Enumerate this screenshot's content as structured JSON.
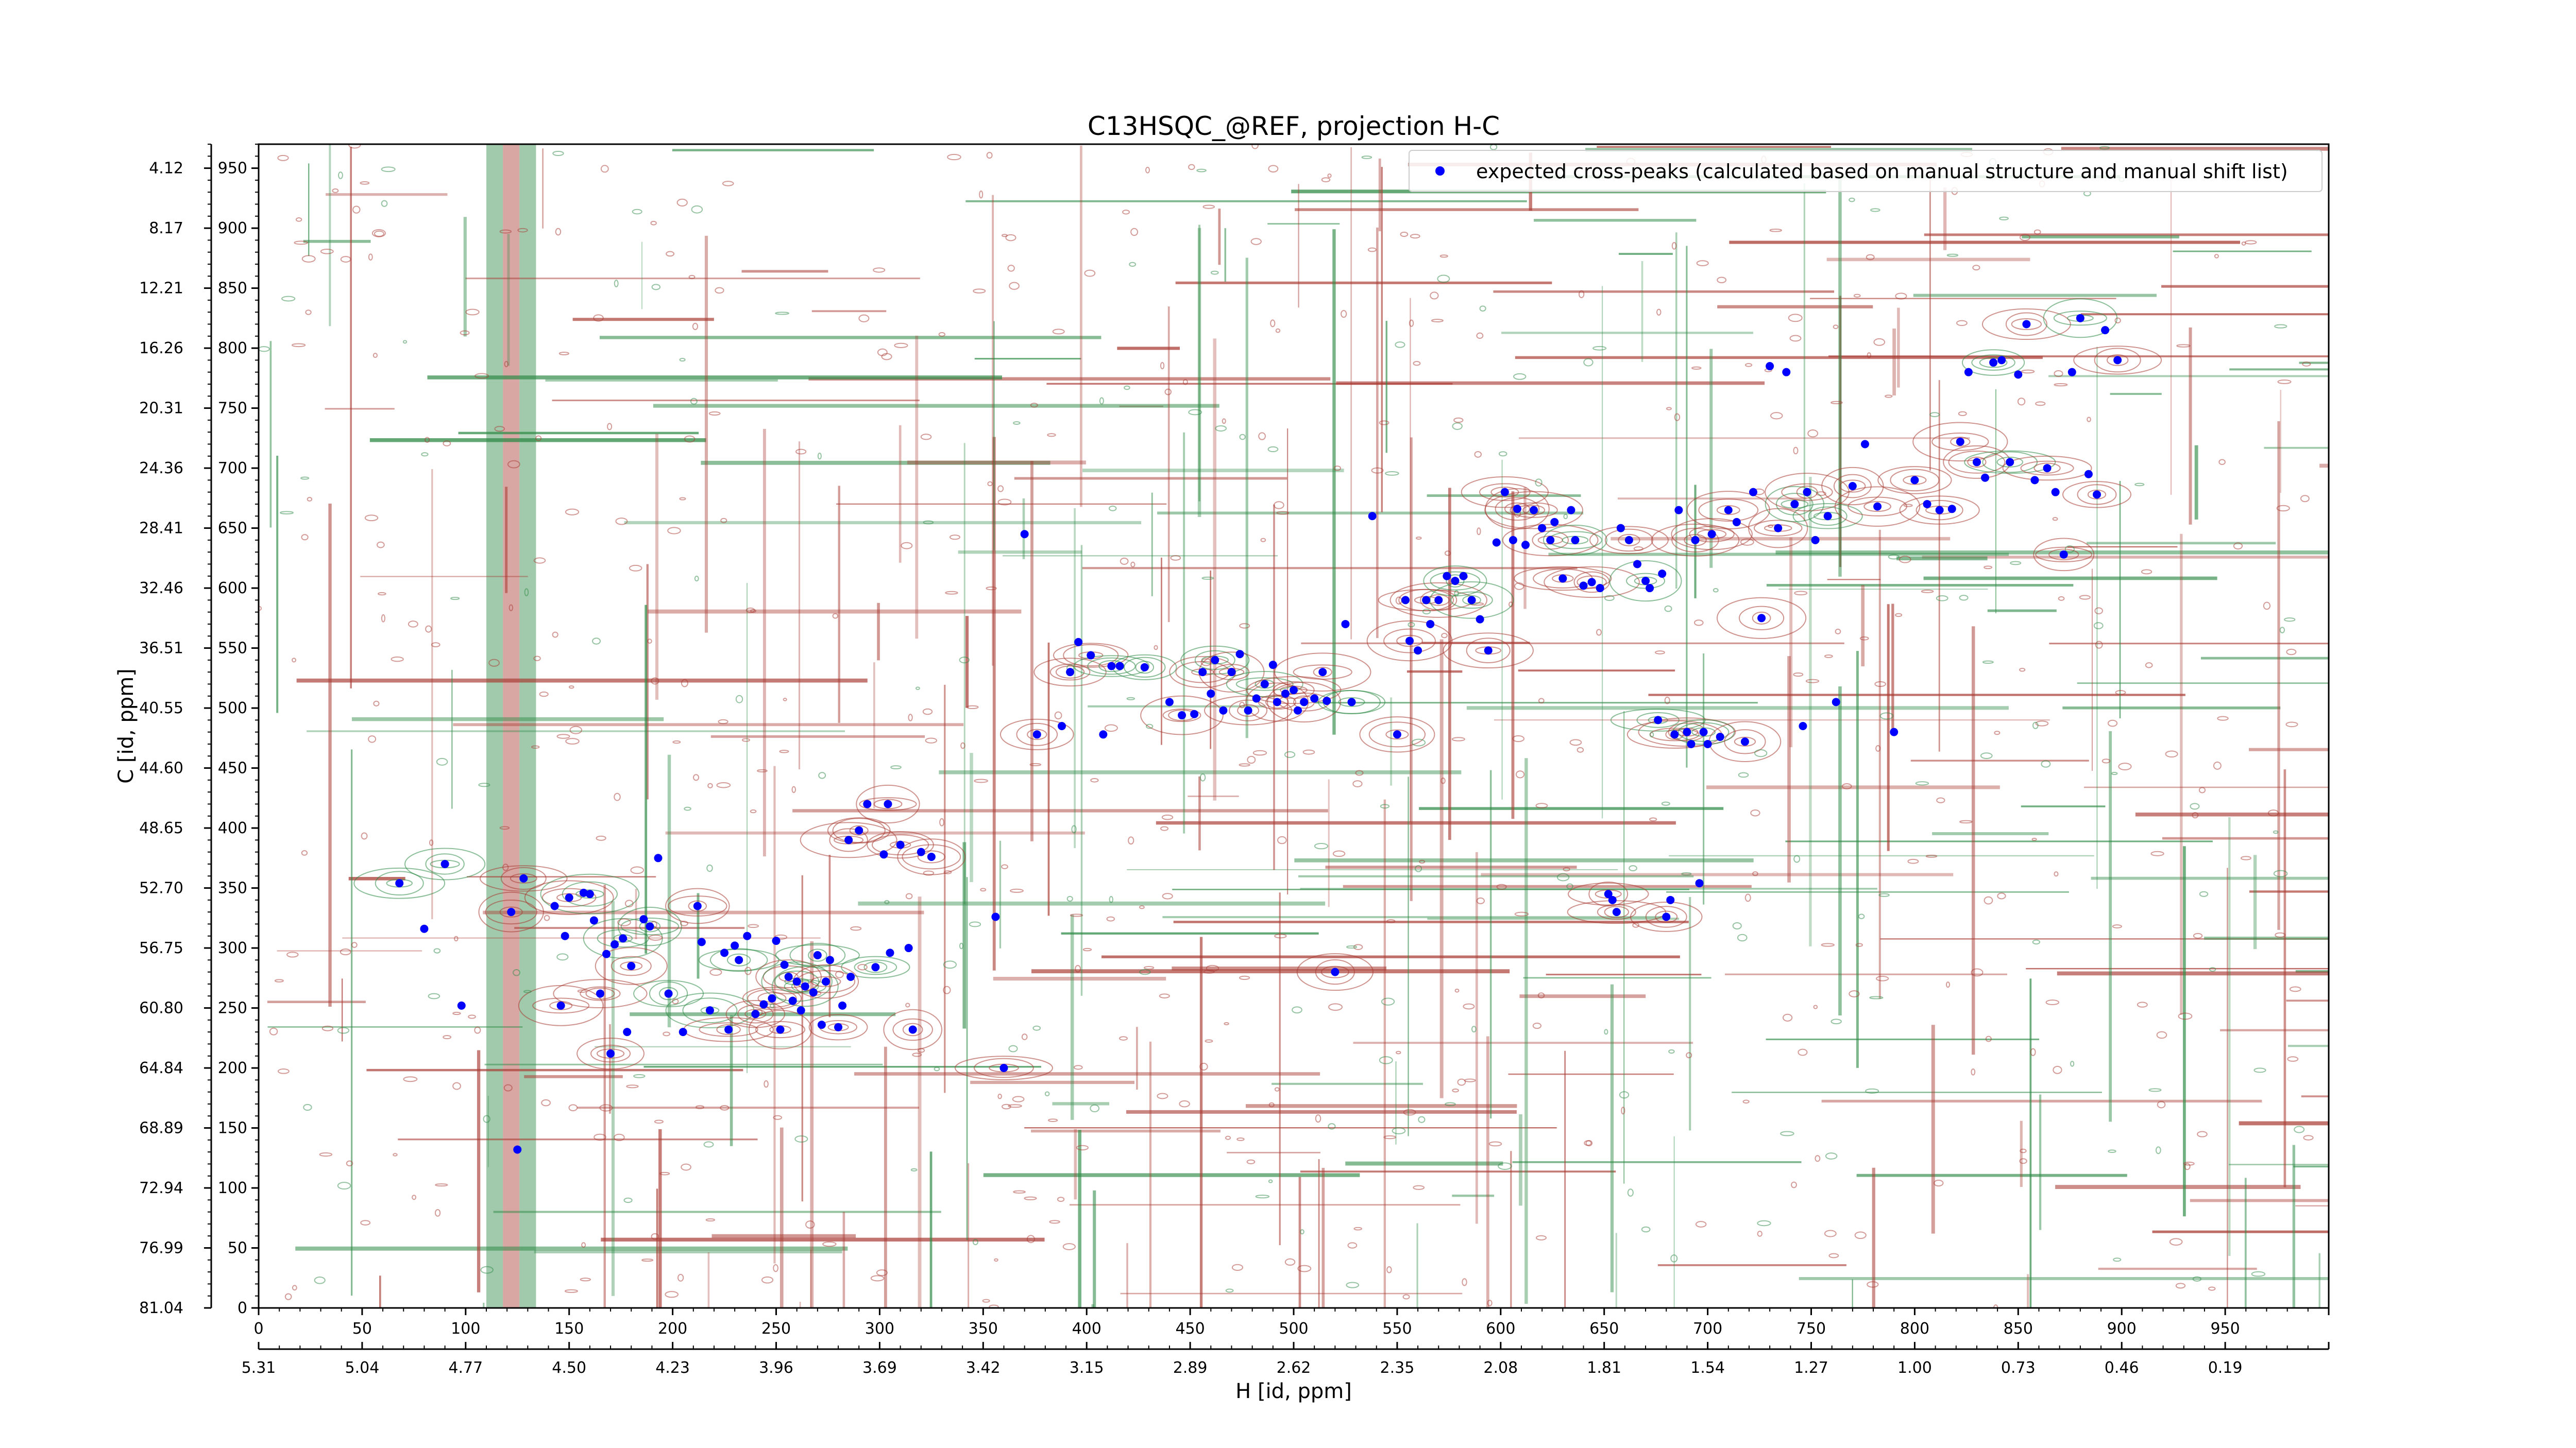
{
  "chart_data": {
    "type": "scatter",
    "title": "C13HSQC_@REF, projection H-C",
    "xlabel": "H [id, ppm]",
    "ylabel": "C [id, ppm]",
    "xlim": [
      0,
      1000
    ],
    "ylim": [
      0,
      970
    ],
    "x_ticks": [
      0,
      50,
      100,
      150,
      200,
      250,
      300,
      350,
      400,
      450,
      500,
      550,
      600,
      650,
      700,
      750,
      800,
      850,
      900,
      950
    ],
    "y_ticks": [
      0,
      50,
      100,
      150,
      200,
      250,
      300,
      350,
      400,
      450,
      500,
      550,
      600,
      650,
      700,
      750,
      800,
      850,
      900,
      950
    ],
    "ppm_x_ticks": [
      "5.31",
      "5.04",
      "4.77",
      "4.50",
      "4.23",
      "3.96",
      "3.69",
      "3.42",
      "3.15",
      "2.89",
      "2.62",
      "2.35",
      "2.08",
      "1.81",
      "1.54",
      "1.27",
      "1.00",
      "0.73",
      "0.46",
      "0.19"
    ],
    "ppm_y_ticks": [
      "81.04",
      "76.99",
      "72.94",
      "68.89",
      "64.84",
      "60.80",
      "56.75",
      "52.70",
      "48.65",
      "44.60",
      "40.55",
      "36.51",
      "32.46",
      "28.41",
      "24.36",
      "20.31",
      "16.26",
      "12.21",
      "8.17",
      "4.12"
    ],
    "legend": {
      "position": "top-right",
      "label": "expected cross-peaks (calculated based on manual structure and manual shift list)"
    },
    "grid": false,
    "series": [
      {
        "name": "expected cross-peaks (calculated based on manual structure and manual shift list)",
        "color": "#0000ff",
        "points": [
          [
            68,
            354
          ],
          [
            80,
            316
          ],
          [
            90,
            370
          ],
          [
            98,
            252
          ],
          [
            122,
            330
          ],
          [
            125,
            132
          ],
          [
            128,
            358
          ],
          [
            143,
            335
          ],
          [
            146,
            252
          ],
          [
            148,
            310
          ],
          [
            150,
            342
          ],
          [
            157,
            346
          ],
          [
            160,
            345
          ],
          [
            162,
            323
          ],
          [
            165,
            262
          ],
          [
            168,
            295
          ],
          [
            170,
            212
          ],
          [
            172,
            303
          ],
          [
            176,
            308
          ],
          [
            178,
            230
          ],
          [
            180,
            285
          ],
          [
            186,
            324
          ],
          [
            189,
            318
          ],
          [
            193,
            375
          ],
          [
            198,
            262
          ],
          [
            205,
            230
          ],
          [
            212,
            335
          ],
          [
            214,
            305
          ],
          [
            218,
            248
          ],
          [
            225,
            296
          ],
          [
            227,
            232
          ],
          [
            230,
            302
          ],
          [
            232,
            290
          ],
          [
            236,
            310
          ],
          [
            240,
            245
          ],
          [
            244,
            253
          ],
          [
            248,
            258
          ],
          [
            250,
            306
          ],
          [
            252,
            232
          ],
          [
            254,
            286
          ],
          [
            256,
            276
          ],
          [
            258,
            256
          ],
          [
            260,
            272
          ],
          [
            262,
            248
          ],
          [
            264,
            268
          ],
          [
            268,
            263
          ],
          [
            270,
            294
          ],
          [
            272,
            236
          ],
          [
            274,
            272
          ],
          [
            276,
            290
          ],
          [
            280,
            234
          ],
          [
            282,
            252
          ],
          [
            285,
            390
          ],
          [
            286,
            276
          ],
          [
            290,
            398
          ],
          [
            294,
            420
          ],
          [
            298,
            284
          ],
          [
            302,
            378
          ],
          [
            304,
            420
          ],
          [
            305,
            296
          ],
          [
            310,
            386
          ],
          [
            314,
            300
          ],
          [
            316,
            232
          ],
          [
            320,
            380
          ],
          [
            325,
            376
          ],
          [
            356,
            326
          ],
          [
            360,
            200
          ],
          [
            370,
            645
          ],
          [
            376,
            478
          ],
          [
            388,
            485
          ],
          [
            392,
            530
          ],
          [
            396,
            555
          ],
          [
            402,
            544
          ],
          [
            408,
            478
          ],
          [
            412,
            535
          ],
          [
            416,
            535
          ],
          [
            428,
            534
          ],
          [
            440,
            505
          ],
          [
            446,
            494
          ],
          [
            452,
            495
          ],
          [
            456,
            530
          ],
          [
            460,
            512
          ],
          [
            462,
            540
          ],
          [
            466,
            498
          ],
          [
            470,
            530
          ],
          [
            474,
            545
          ],
          [
            478,
            498
          ],
          [
            482,
            508
          ],
          [
            486,
            520
          ],
          [
            490,
            536
          ],
          [
            492,
            505
          ],
          [
            496,
            512
          ],
          [
            500,
            515
          ],
          [
            502,
            498
          ],
          [
            505,
            505
          ],
          [
            510,
            508
          ],
          [
            514,
            530
          ],
          [
            516,
            506
          ],
          [
            520,
            280
          ],
          [
            525,
            570
          ],
          [
            528,
            505
          ],
          [
            538,
            660
          ],
          [
            550,
            478
          ],
          [
            554,
            590
          ],
          [
            556,
            556
          ],
          [
            560,
            548
          ],
          [
            564,
            590
          ],
          [
            566,
            570
          ],
          [
            570,
            590
          ],
          [
            574,
            610
          ],
          [
            578,
            606
          ],
          [
            582,
            610
          ],
          [
            586,
            590
          ],
          [
            590,
            574
          ],
          [
            594,
            548
          ],
          [
            598,
            638
          ],
          [
            602,
            680
          ],
          [
            606,
            640
          ],
          [
            608,
            666
          ],
          [
            612,
            636
          ],
          [
            616,
            665
          ],
          [
            620,
            650
          ],
          [
            624,
            640
          ],
          [
            626,
            655
          ],
          [
            630,
            608
          ],
          [
            634,
            665
          ],
          [
            636,
            640
          ],
          [
            640,
            602
          ],
          [
            644,
            605
          ],
          [
            648,
            600
          ],
          [
            652,
            345
          ],
          [
            654,
            340
          ],
          [
            656,
            330
          ],
          [
            658,
            650
          ],
          [
            662,
            640
          ],
          [
            666,
            620
          ],
          [
            670,
            606
          ],
          [
            672,
            600
          ],
          [
            676,
            490
          ],
          [
            678,
            612
          ],
          [
            680,
            326
          ],
          [
            682,
            340
          ],
          [
            684,
            478
          ],
          [
            686,
            665
          ],
          [
            690,
            480
          ],
          [
            692,
            470
          ],
          [
            694,
            640
          ],
          [
            696,
            354
          ],
          [
            698,
            480
          ],
          [
            700,
            470
          ],
          [
            702,
            645
          ],
          [
            706,
            476
          ],
          [
            710,
            665
          ],
          [
            714,
            655
          ],
          [
            718,
            472
          ],
          [
            722,
            680
          ],
          [
            726,
            575
          ],
          [
            730,
            785
          ],
          [
            734,
            650
          ],
          [
            738,
            780
          ],
          [
            742,
            670
          ],
          [
            746,
            485
          ],
          [
            748,
            680
          ],
          [
            752,
            640
          ],
          [
            758,
            660
          ],
          [
            762,
            505
          ],
          [
            770,
            685
          ],
          [
            776,
            720
          ],
          [
            782,
            668
          ],
          [
            790,
            480
          ],
          [
            800,
            690
          ],
          [
            806,
            670
          ],
          [
            812,
            665
          ],
          [
            818,
            666
          ],
          [
            822,
            722
          ],
          [
            826,
            780
          ],
          [
            830,
            705
          ],
          [
            834,
            692
          ],
          [
            838,
            788
          ],
          [
            842,
            790
          ],
          [
            846,
            705
          ],
          [
            850,
            778
          ],
          [
            854,
            820
          ],
          [
            858,
            690
          ],
          [
            864,
            700
          ],
          [
            868,
            680
          ],
          [
            872,
            628
          ],
          [
            876,
            780
          ],
          [
            880,
            825
          ],
          [
            884,
            695
          ],
          [
            888,
            678
          ],
          [
            892,
            815
          ],
          [
            898,
            790
          ]
        ]
      }
    ]
  }
}
